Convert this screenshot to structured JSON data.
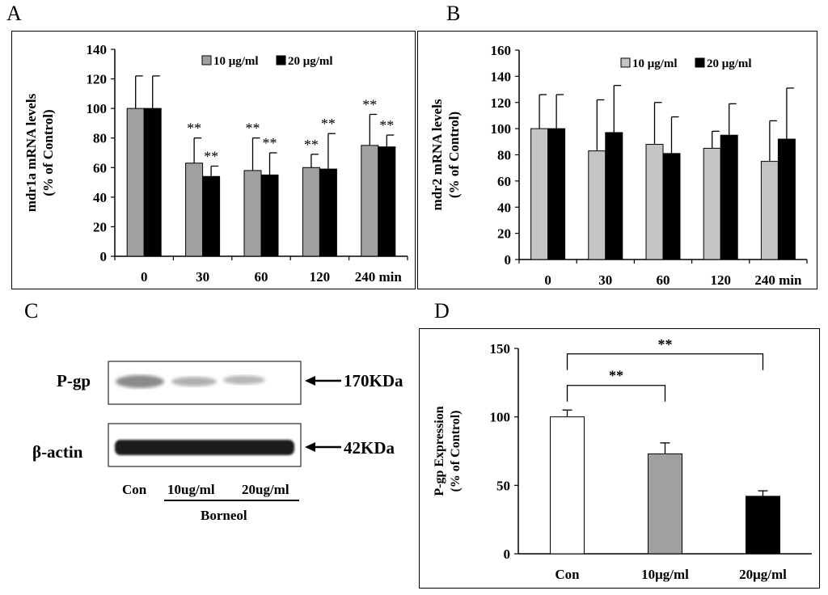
{
  "panel_labels": {
    "a": "A",
    "b": "B",
    "c": "C",
    "d": "D"
  },
  "colors": {
    "gray": "#a0a0a0",
    "black": "#000000",
    "white": "#ffffff",
    "light_gray": "#c4c4c4"
  },
  "chart_data": [
    {
      "type": "bar",
      "ylabel_line1": "mdr1a mRNA levels",
      "ylabel_line2": "(% of Control)",
      "categories": [
        "0",
        "30",
        "60",
        "120",
        "240 min"
      ],
      "ylim": [
        0,
        140
      ],
      "yticks": [
        "0",
        "20",
        "40",
        "60",
        "80",
        "100",
        "120",
        "140"
      ],
      "legend": [
        "10 μg/ml",
        "20 μg/ml"
      ],
      "series": [
        {
          "name": "10 μg/ml",
          "values": [
            100,
            63,
            58,
            60,
            75
          ],
          "errors": [
            22,
            17,
            22,
            9,
            21
          ]
        },
        {
          "name": "20 μg/ml",
          "values": [
            100,
            54,
            55,
            59,
            74
          ],
          "errors": [
            22,
            7,
            15,
            24,
            8
          ]
        }
      ],
      "annotations": [
        {
          "category": 1,
          "series": 0,
          "text": "**"
        },
        {
          "category": 1,
          "series": 1,
          "text": "**"
        },
        {
          "category": 2,
          "series": 0,
          "text": "**"
        },
        {
          "category": 2,
          "series": 1,
          "text": "**"
        },
        {
          "category": 3,
          "series": 0,
          "text": "**"
        },
        {
          "category": 3,
          "series": 1,
          "text": "**"
        },
        {
          "category": 4,
          "series": 0,
          "text": "**"
        },
        {
          "category": 4,
          "series": 1,
          "text": "**"
        }
      ]
    },
    {
      "type": "bar",
      "ylabel_line1": "mdr2 mRNA levels",
      "ylabel_line2": "(% of Control)",
      "categories": [
        "0",
        "30",
        "60",
        "120",
        "240 min"
      ],
      "ylim": [
        0,
        160
      ],
      "yticks": [
        "0",
        "20",
        "40",
        "60",
        "80",
        "100",
        "120",
        "140",
        "160"
      ],
      "legend": [
        "10 μg/ml",
        "20 μg/ml"
      ],
      "series": [
        {
          "name": "10 μg/ml",
          "values": [
            100,
            83,
            88,
            85,
            75
          ],
          "errors": [
            26,
            39,
            32,
            13,
            31
          ]
        },
        {
          "name": "20 μg/ml",
          "values": [
            100,
            97,
            81,
            95,
            92
          ],
          "errors": [
            26,
            36,
            28,
            24,
            39
          ]
        }
      ]
    },
    {
      "type": "bar",
      "ylabel_line1": "P-gp Expression",
      "ylabel_line2": "(% of Control)",
      "categories": [
        "Con",
        "10μg/ml",
        "20μg/ml"
      ],
      "ylim": [
        0,
        150
      ],
      "yticks": [
        "0",
        "50",
        "100",
        "150"
      ],
      "values": [
        100,
        73,
        42
      ],
      "errors": [
        5,
        8,
        4
      ],
      "significance": [
        {
          "from": 0,
          "to": 1,
          "text": "**"
        },
        {
          "from": 0,
          "to": 2,
          "text": "**"
        }
      ]
    }
  ],
  "blot": {
    "bands": [
      {
        "label": "P-gp",
        "size": "170KDa"
      },
      {
        "label": "β-actin",
        "size": "42KDa"
      }
    ],
    "lanes": [
      "Con",
      "10ug/ml",
      "20ug/ml"
    ],
    "group_label": "Borneol"
  }
}
